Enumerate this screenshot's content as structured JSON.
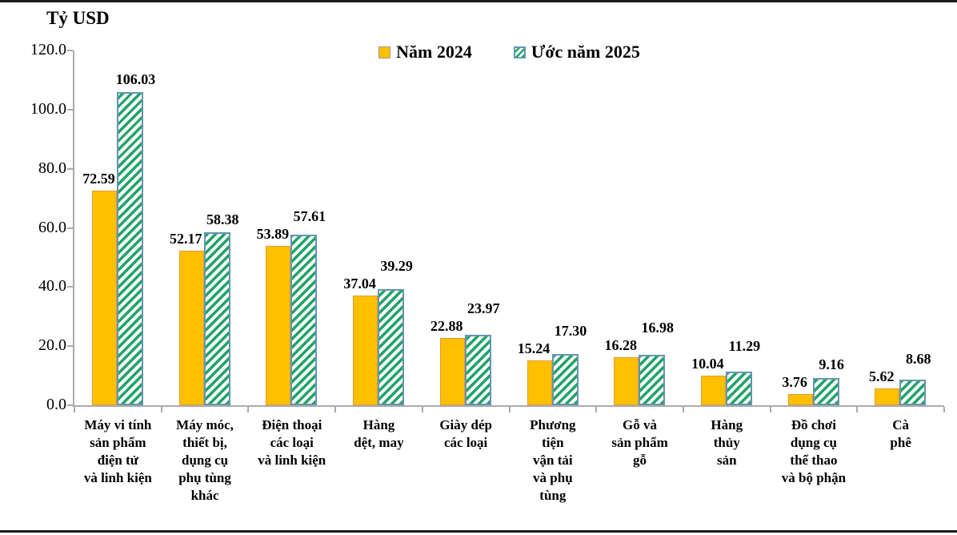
{
  "title": "Tỷ USD",
  "legend": {
    "items": [
      {
        "label": "Năm 2024",
        "swatch": "solid-yellow-square"
      },
      {
        "label": "Ước năm 2025",
        "swatch": "green-hatched-square"
      }
    ]
  },
  "colors": {
    "bar_2024_fill": "#FFC000",
    "bar_2024_border": "#E39B35",
    "bar_2025_hatch_stripe": "#21A366",
    "bar_2025_border": "#6495B2",
    "axis_line": "#ABABAB",
    "frame_rule": "#1A1A1A",
    "text": "#000000"
  },
  "y_axis": {
    "unit_label": "Tỷ USD",
    "tick_labels": [
      "120.0",
      "100.0",
      "80.0",
      "60.0",
      "40.0",
      "20.0",
      "0.0"
    ]
  },
  "chart_data": {
    "type": "bar",
    "title": "Tỷ USD",
    "ylabel": "Tỷ USD",
    "ylim": [
      0,
      120
    ],
    "y_tick_step": 20,
    "grid": false,
    "legend_position": "top-center",
    "value_label_decimals": 2,
    "categories": [
      "Máy vi tính\nsản phẩm\nđiện tử\nvà linh kiện",
      "Máy móc,\nthiết bị,\ndụng cụ\nphụ tùng\nkhác",
      "Điện thoại\ncác loại\nvà linh kiện",
      "Hàng\ndệt, may",
      "Giày dép\ncác loại",
      "Phương\ntiện\nvận tải\nvà phụ\ntùng",
      "Gỗ và\nsản phẩm\ngỗ",
      "Hàng\nthủy\nsản",
      "Đồ chơi\ndụng cụ\nthể thao\nvà bộ phận",
      "Cà\nphê"
    ],
    "series": [
      {
        "name": "Năm 2024",
        "values": [
          72.59,
          52.17,
          53.89,
          37.04,
          22.88,
          15.24,
          16.28,
          10.04,
          3.76,
          5.62
        ]
      },
      {
        "name": "Ước năm 2025",
        "values": [
          106.03,
          58.38,
          57.61,
          39.29,
          23.97,
          17.3,
          16.98,
          11.29,
          9.16,
          8.68
        ]
      }
    ]
  }
}
